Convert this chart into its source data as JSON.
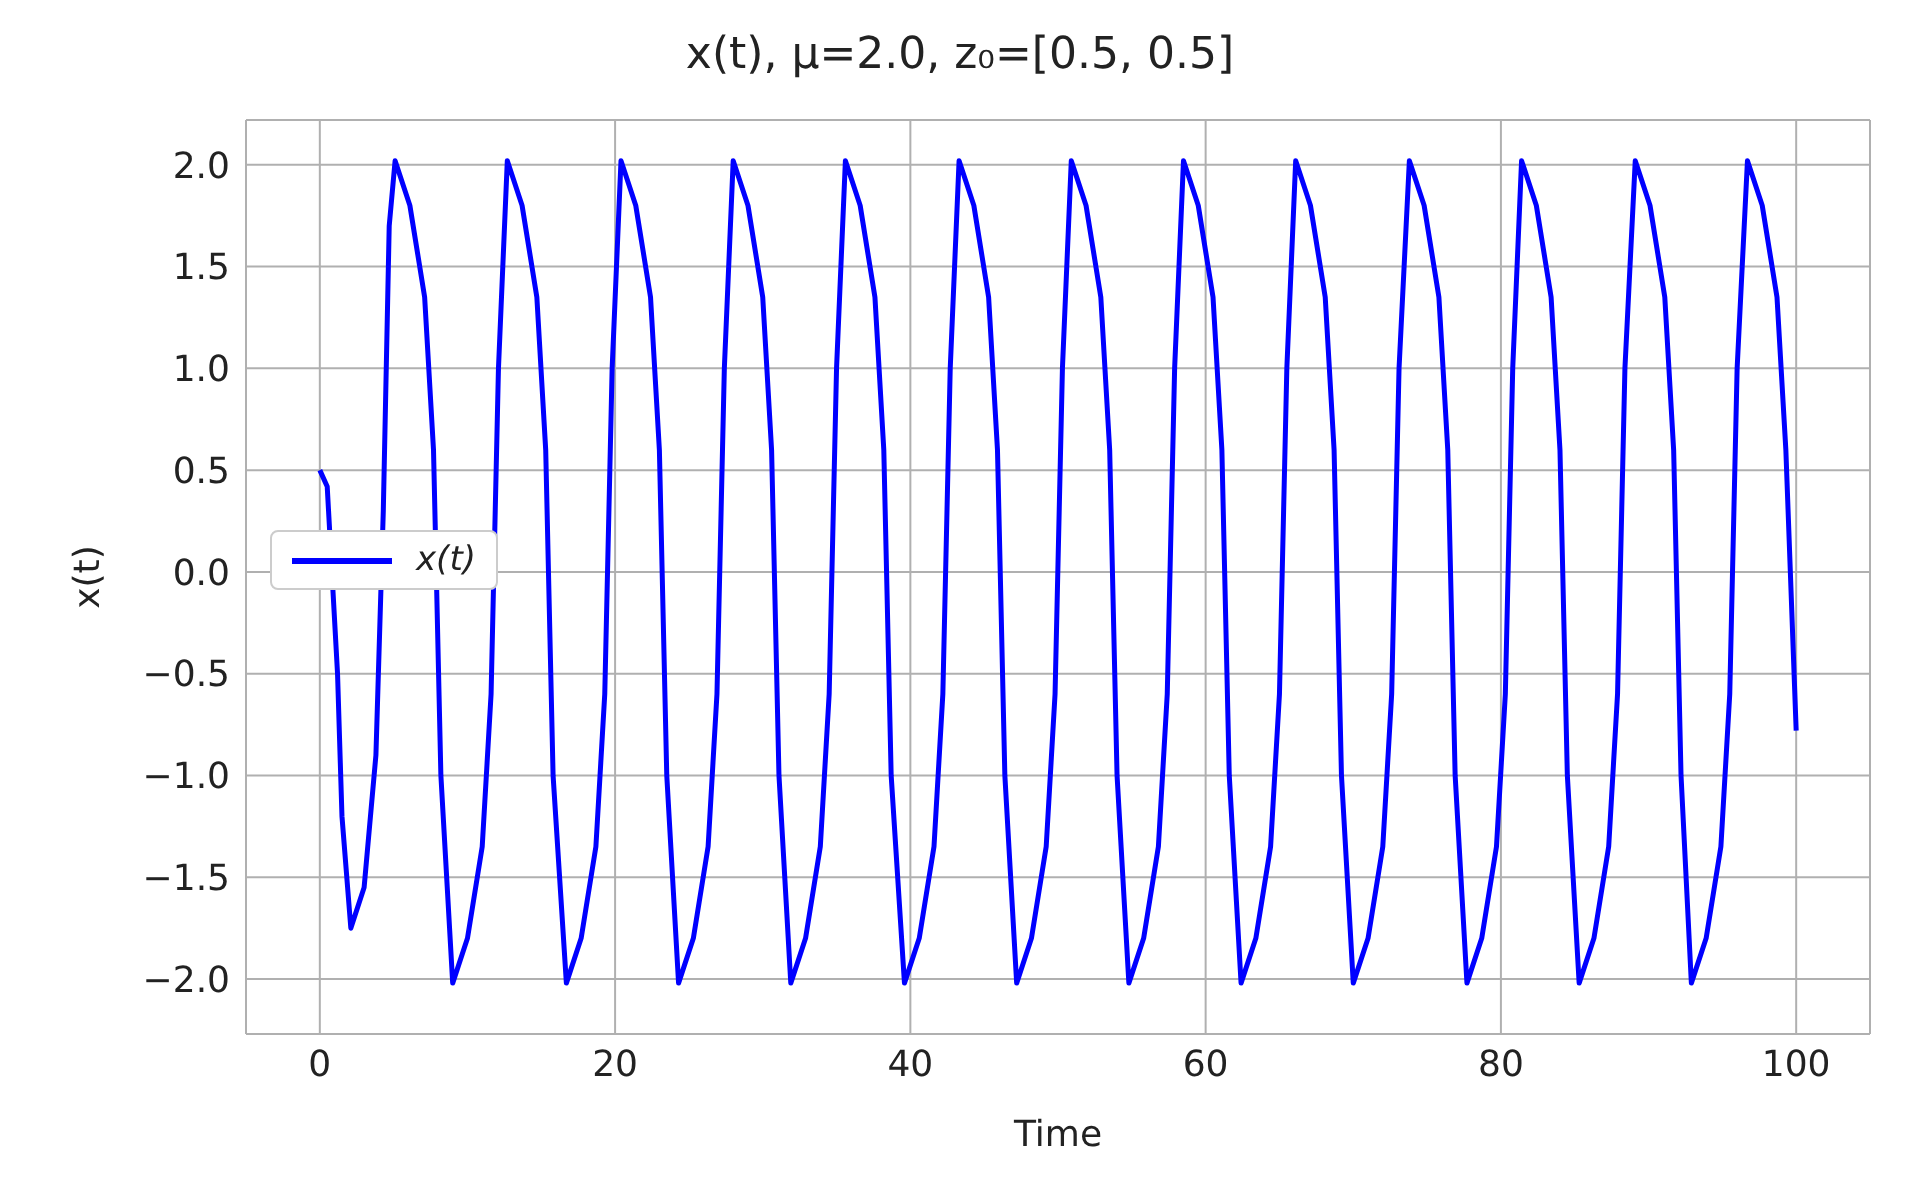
{
  "chart_data": {
    "type": "line",
    "title": "x(t), μ=2.0, z₀=[0.5, 0.5]",
    "xlabel": "Time",
    "ylabel": "x(t)",
    "x": [
      0,
      0.5,
      1.2,
      1.5,
      2.1,
      3.0,
      3.8,
      4.3,
      4.7,
      5.1,
      6.1,
      7.1,
      7.7,
      8.2,
      9.0,
      10.0,
      11.0,
      11.6,
      12.1,
      12.7,
      13.7,
      14.7,
      15.3,
      15.8,
      16.7,
      17.7,
      18.7,
      19.3,
      19.8,
      20.4,
      21.4,
      22.4,
      23.0,
      23.5,
      24.3,
      25.3,
      26.3,
      26.9,
      27.4,
      28.0,
      29.0,
      30.0,
      30.6,
      31.1,
      31.9,
      32.9,
      33.9,
      34.5,
      35.0,
      35.6,
      36.6,
      37.6,
      38.2,
      38.7,
      39.6,
      40.6,
      41.6,
      42.2,
      42.7,
      43.3,
      44.3,
      45.3,
      45.9,
      46.4,
      47.2,
      48.2,
      49.2,
      49.8,
      50.3,
      50.9,
      51.9,
      52.9,
      53.5,
      54.0,
      54.8,
      55.8,
      56.8,
      57.4,
      57.9,
      58.5,
      59.5,
      60.5,
      61.1,
      61.6,
      62.4,
      63.4,
      64.4,
      65.0,
      65.5,
      66.1,
      67.1,
      68.1,
      68.7,
      69.2,
      70.0,
      71.0,
      72.0,
      72.6,
      73.1,
      73.8,
      74.8,
      75.8,
      76.4,
      76.9,
      77.7,
      78.7,
      79.7,
      80.3,
      80.8,
      81.4,
      82.4,
      83.4,
      84.0,
      84.5,
      85.3,
      86.3,
      87.3,
      87.9,
      88.4,
      89.1,
      90.1,
      91.1,
      91.7,
      92.2,
      92.9,
      93.9,
      94.9,
      95.5,
      96.0,
      96.7,
      97.7,
      98.7,
      99.3,
      100
    ],
    "series": [
      {
        "name": "x(t)",
        "color": "#0000ff",
        "values": [
          0.5,
          0.42,
          -0.5,
          -1.2,
          -1.75,
          -1.55,
          -0.9,
          0.3,
          1.7,
          2.02,
          1.8,
          1.35,
          0.6,
          -1.0,
          -2.02,
          -1.8,
          -1.35,
          -0.6,
          1.0,
          2.02,
          1.8,
          1.35,
          0.6,
          -1.0,
          -2.02,
          -1.8,
          -1.35,
          -0.6,
          1.0,
          2.02,
          1.8,
          1.35,
          0.6,
          -1.0,
          -2.02,
          -1.8,
          -1.35,
          -0.6,
          1.0,
          2.02,
          1.8,
          1.35,
          0.6,
          -1.0,
          -2.02,
          -1.8,
          -1.35,
          -0.6,
          1.0,
          2.02,
          1.8,
          1.35,
          0.6,
          -1.0,
          -2.02,
          -1.8,
          -1.35,
          -0.6,
          1.0,
          2.02,
          1.8,
          1.35,
          0.6,
          -1.0,
          -2.02,
          -1.8,
          -1.35,
          -0.6,
          1.0,
          2.02,
          1.8,
          1.35,
          0.6,
          -1.0,
          -2.02,
          -1.8,
          -1.35,
          -0.6,
          1.0,
          2.02,
          1.8,
          1.35,
          0.6,
          -1.0,
          -2.02,
          -1.8,
          -1.35,
          -0.6,
          1.0,
          2.02,
          1.8,
          1.35,
          0.6,
          -1.0,
          -2.02,
          -1.8,
          -1.35,
          -0.6,
          1.0,
          2.02,
          1.8,
          1.35,
          0.6,
          -1.0,
          -2.02,
          -1.8,
          -1.35,
          -0.6,
          1.0,
          2.02,
          1.8,
          1.35,
          0.6,
          -1.0,
          -2.02,
          -1.8,
          -1.35,
          -0.6,
          1.0,
          2.02,
          1.8,
          1.35,
          0.6,
          -1.0,
          -2.02,
          -1.8,
          -1.35,
          -0.6,
          1.0,
          2.02,
          1.8,
          1.35,
          0.6,
          -0.78
        ]
      }
    ],
    "xlim": [
      -5,
      105
    ],
    "xticks": [
      0,
      20,
      40,
      60,
      80,
      100
    ],
    "ylim": [
      -2.27,
      2.22
    ],
    "yticks": [
      {
        "value": -2,
        "label": "−2.0"
      },
      {
        "value": -1.5,
        "label": "−1.5"
      },
      {
        "value": -1,
        "label": "−1.0"
      },
      {
        "value": -0.5,
        "label": "−0.5"
      },
      {
        "value": 0,
        "label": "0.0"
      },
      {
        "value": 0.5,
        "label": "0.5"
      },
      {
        "value": 1,
        "label": "1.0"
      },
      {
        "value": 1.5,
        "label": "1.5"
      },
      {
        "value": 2,
        "label": "2.0"
      }
    ],
    "grid": true,
    "legend": "left",
    "marker": "none",
    "line_style": "solid"
  }
}
